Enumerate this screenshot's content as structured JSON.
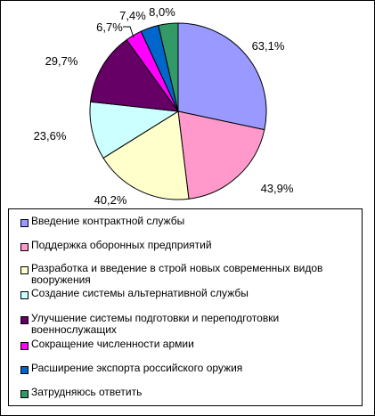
{
  "chart_data": {
    "type": "pie",
    "title": "",
    "slices": [
      {
        "label": "Введение контрактной службы",
        "value": 63.1,
        "value_label": "63,1%",
        "color": "#9999ff"
      },
      {
        "label": "Поддержка оборонных предприятий",
        "value": 43.9,
        "value_label": "43,9%",
        "color": "#ff99cc"
      },
      {
        "label": "Разработка и введение в строй новых современных видов вооружения",
        "value": 40.2,
        "value_label": "40,2%",
        "color": "#ffffcc"
      },
      {
        "label": "Создание системы альтернативной службы",
        "value": 23.6,
        "value_label": "23,6%",
        "color": "#ccffff"
      },
      {
        "label": "Улучшение системы подготовки и переподготовки военнослужащих",
        "value": 29.7,
        "value_label": "29,7%",
        "color": "#660066"
      },
      {
        "label": "Сокращение численности армии",
        "value": 6.7,
        "value_label": "6,7%",
        "color": "#ff00ff"
      },
      {
        "label": "Расширение экспорта российского оружия",
        "value": 7.4,
        "value_label": "7,4%",
        "color": "#0066cc"
      },
      {
        "label": "Затрудняюсь ответить",
        "value": 8.0,
        "value_label": "8,0%",
        "color": "#339966"
      }
    ],
    "legend_position": "bottom"
  }
}
